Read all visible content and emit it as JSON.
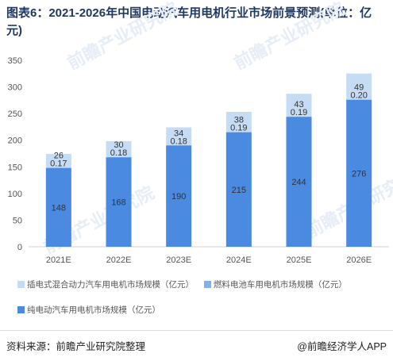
{
  "title": "图表6：2021-2026年中国电动汽车用电机行业市场前景预测(单位：亿元)",
  "watermark": "前瞻产业研究院",
  "footer": {
    "source": "资料来源：前瞻产业研究院整理",
    "brand": "@前瞻经济学人APP"
  },
  "colors": {
    "hybrid": "#c6dcf5",
    "fuel_cell": "#7fb2e8",
    "pure_ev": "#4a8ae0",
    "text": "#333333",
    "axis_text": "#555555"
  },
  "chart_data": {
    "type": "bar",
    "stacked": true,
    "categories": [
      "2021E",
      "2022E",
      "2023E",
      "2024E",
      "2025E",
      "2026E"
    ],
    "series": [
      {
        "name": "纯电动汽车用电机市场规模（亿元）",
        "values": [
          148,
          168,
          190,
          215,
          244,
          276
        ]
      },
      {
        "name": "燃料电池车用电机市场规模（亿元）",
        "values": [
          0.17,
          0.18,
          0.18,
          0.19,
          0.19,
          0.2
        ]
      },
      {
        "name": "插电式混合动力汽车用电机市场规模（亿元）",
        "values": [
          26,
          30,
          34,
          38,
          43,
          49
        ]
      }
    ],
    "data_labels": {
      "pure_ev": [
        "148",
        "168",
        "190",
        "215",
        "244",
        "276"
      ],
      "fuel_cell": [
        "0.17",
        "0.18",
        "0.18",
        "0.19",
        "0.19",
        "0.20"
      ],
      "hybrid": [
        "26",
        "30",
        "34",
        "38",
        "43",
        "49"
      ]
    },
    "y_ticks": [
      0,
      50,
      100,
      150,
      200,
      250,
      300,
      350
    ],
    "ylim": [
      0,
      350
    ],
    "legend_position": "bottom",
    "grid": false
  }
}
